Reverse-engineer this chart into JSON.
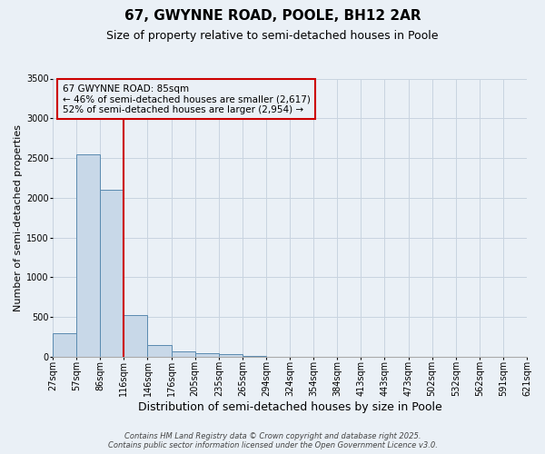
{
  "title": "67, GWYNNE ROAD, POOLE, BH12 2AR",
  "subtitle": "Size of property relative to semi-detached houses in Poole",
  "xlabel": "Distribution of semi-detached houses by size in Poole",
  "ylabel": "Number of semi-detached properties",
  "bar_values": [
    300,
    2550,
    2100,
    520,
    150,
    70,
    40,
    30,
    5,
    2,
    1,
    1,
    1,
    0,
    0,
    0,
    0,
    0,
    0,
    0
  ],
  "bin_labels": [
    "27sqm",
    "57sqm",
    "86sqm",
    "116sqm",
    "146sqm",
    "176sqm",
    "205sqm",
    "235sqm",
    "265sqm",
    "294sqm",
    "324sqm",
    "354sqm",
    "384sqm",
    "413sqm",
    "443sqm",
    "473sqm",
    "502sqm",
    "532sqm",
    "562sqm",
    "591sqm",
    "621sqm"
  ],
  "bar_color": "#c8d8e8",
  "bar_edge_color": "#5a8ab0",
  "grid_color": "#c8d4e0",
  "background_color": "#eaf0f6",
  "vline_color": "#cc0000",
  "vline_bin_index": 2,
  "annotation_text": "67 GWYNNE ROAD: 85sqm\n← 46% of semi-detached houses are smaller (2,617)\n52% of semi-detached houses are larger (2,954) →",
  "annotation_box_edge_color": "#cc0000",
  "ylim": [
    0,
    3500
  ],
  "yticks": [
    0,
    500,
    1000,
    1500,
    2000,
    2500,
    3000,
    3500
  ],
  "footer_line1": "Contains HM Land Registry data © Crown copyright and database right 2025.",
  "footer_line2": "Contains public sector information licensed under the Open Government Licence v3.0.",
  "title_fontsize": 11,
  "subtitle_fontsize": 9,
  "xlabel_fontsize": 9,
  "ylabel_fontsize": 8,
  "tick_fontsize": 7,
  "annotation_fontsize": 7.5,
  "footer_fontsize": 6
}
